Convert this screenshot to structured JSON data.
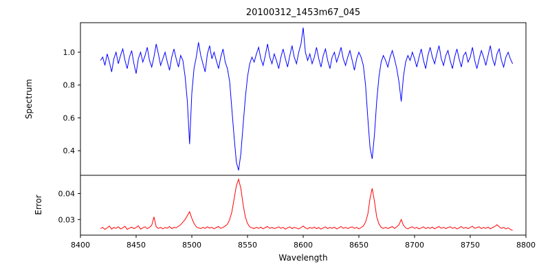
{
  "figure": {
    "title": "20100312_1453m67_045",
    "xlabel": "Wavelength",
    "background": "#ffffff",
    "frame_color": "#000000"
  },
  "chart_data": [
    {
      "type": "line",
      "name": "spectrum",
      "title": "20100312_1453m67_045",
      "ylabel": "Spectrum",
      "color": "#0000ff",
      "legend": "none",
      "grid": false,
      "xlim": [
        8400,
        8800
      ],
      "ylim": [
        0.25,
        1.18
      ],
      "ytick_values": [
        0.4,
        0.6,
        0.8,
        1.0
      ],
      "ytick_labels": [
        "0.4",
        "0.6",
        "0.8",
        "1.0"
      ],
      "x_start": 8418,
      "x_step": 2,
      "values": [
        0.95,
        0.97,
        0.92,
        0.99,
        0.94,
        0.88,
        0.96,
        1.0,
        0.93,
        0.98,
        1.02,
        0.95,
        0.9,
        0.97,
        1.01,
        0.93,
        0.87,
        0.96,
        1.0,
        0.94,
        0.98,
        1.03,
        0.95,
        0.91,
        0.97,
        1.05,
        0.99,
        0.92,
        0.96,
        1.0,
        0.94,
        0.89,
        0.97,
        1.02,
        0.96,
        0.91,
        0.98,
        0.95,
        0.85,
        0.7,
        0.44,
        0.75,
        0.9,
        0.97,
        1.06,
        0.98,
        0.93,
        0.88,
        0.99,
        1.04,
        0.96,
        1.0,
        0.95,
        0.9,
        0.97,
        1.02,
        0.94,
        0.9,
        0.82,
        0.65,
        0.48,
        0.33,
        0.28,
        0.38,
        0.55,
        0.72,
        0.85,
        0.93,
        0.97,
        0.94,
        0.99,
        1.03,
        0.96,
        0.92,
        0.98,
        1.05,
        0.97,
        0.93,
        0.99,
        0.95,
        0.9,
        0.97,
        1.02,
        0.96,
        0.91,
        0.98,
        1.04,
        0.97,
        0.93,
        1.0,
        1.05,
        1.15,
        1.0,
        0.95,
        0.99,
        0.93,
        0.97,
        1.03,
        0.96,
        0.91,
        0.98,
        1.02,
        0.95,
        0.9,
        0.97,
        1.0,
        0.94,
        0.98,
        1.03,
        0.96,
        0.92,
        0.97,
        1.01,
        0.95,
        0.89,
        0.96,
        1.0,
        0.97,
        0.92,
        0.8,
        0.6,
        0.42,
        0.35,
        0.5,
        0.7,
        0.85,
        0.94,
        0.98,
        0.95,
        0.91,
        0.97,
        1.01,
        0.96,
        0.9,
        0.82,
        0.7,
        0.85,
        0.94,
        0.98,
        0.95,
        1.0,
        0.96,
        0.91,
        0.97,
        1.02,
        0.95,
        0.9,
        0.98,
        1.03,
        0.97,
        0.93,
        0.99,
        1.04,
        0.96,
        0.92,
        0.98,
        1.01,
        0.95,
        0.9,
        0.97,
        1.02,
        0.96,
        0.91,
        0.98,
        1.0,
        0.94,
        0.97,
        1.03,
        0.95,
        0.9,
        0.96,
        1.01,
        0.97,
        0.92,
        0.98,
        1.04,
        0.96,
        0.92,
        0.99,
        1.02,
        0.95,
        0.91,
        0.97,
        1.0,
        0.96,
        0.93
      ],
      "features": [
        "absorption line ~8498 depth 0.44",
        "absorption line ~8542 depth 0.28",
        "absorption line ~8662 depth 0.35",
        "small dip ~8688 depth 0.70",
        "emission spike ~8600 height 1.15"
      ]
    },
    {
      "type": "line",
      "name": "error",
      "ylabel": "Error",
      "xlabel": "Wavelength",
      "color": "#ff0000",
      "legend": "none",
      "grid": false,
      "xlim": [
        8400,
        8800
      ],
      "ylim": [
        0.024,
        0.047
      ],
      "ytick_values": [
        0.03,
        0.04
      ],
      "ytick_labels": [
        "0.03",
        "0.04"
      ],
      "xtick_values": [
        8400,
        8450,
        8500,
        8550,
        8600,
        8650,
        8700,
        8750,
        8800
      ],
      "xtick_labels": [
        "8400",
        "8450",
        "8500",
        "8550",
        "8600",
        "8650",
        "8700",
        "8750",
        "8800"
      ],
      "x_start": 8418,
      "x_step": 2,
      "values": [
        0.0265,
        0.027,
        0.0262,
        0.0268,
        0.0275,
        0.0263,
        0.027,
        0.0266,
        0.0272,
        0.0264,
        0.0268,
        0.0274,
        0.0262,
        0.0267,
        0.0271,
        0.0265,
        0.0269,
        0.0276,
        0.0263,
        0.0268,
        0.0272,
        0.0265,
        0.027,
        0.0278,
        0.031,
        0.0272,
        0.0266,
        0.027,
        0.0264,
        0.0269,
        0.0267,
        0.0273,
        0.0265,
        0.027,
        0.0268,
        0.0274,
        0.028,
        0.029,
        0.03,
        0.0315,
        0.033,
        0.0305,
        0.0285,
        0.0272,
        0.0268,
        0.0265,
        0.027,
        0.0266,
        0.0272,
        0.0267,
        0.027,
        0.0264,
        0.0269,
        0.0273,
        0.0266,
        0.027,
        0.0275,
        0.0282,
        0.03,
        0.033,
        0.038,
        0.043,
        0.0455,
        0.042,
        0.036,
        0.031,
        0.0285,
        0.0272,
        0.0268,
        0.0265,
        0.027,
        0.0266,
        0.0271,
        0.0264,
        0.0269,
        0.0273,
        0.0266,
        0.027,
        0.0265,
        0.0268,
        0.0272,
        0.0266,
        0.027,
        0.0263,
        0.0268,
        0.0272,
        0.0265,
        0.027,
        0.0267,
        0.0264,
        0.0269,
        0.0275,
        0.0268,
        0.0264,
        0.027,
        0.0266,
        0.0271,
        0.0265,
        0.0269,
        0.0263,
        0.0268,
        0.0272,
        0.0265,
        0.027,
        0.0266,
        0.0271,
        0.0264,
        0.0268,
        0.0273,
        0.0266,
        0.027,
        0.0265,
        0.0269,
        0.0272,
        0.0266,
        0.027,
        0.0264,
        0.0269,
        0.0275,
        0.029,
        0.032,
        0.038,
        0.042,
        0.037,
        0.031,
        0.0283,
        0.027,
        0.0266,
        0.027,
        0.0265,
        0.0269,
        0.0273,
        0.0266,
        0.0272,
        0.028,
        0.03,
        0.0278,
        0.0268,
        0.0264,
        0.0269,
        0.0272,
        0.0266,
        0.027,
        0.0264,
        0.0268,
        0.0272,
        0.0265,
        0.027,
        0.0266,
        0.0271,
        0.0264,
        0.0269,
        0.0273,
        0.0266,
        0.027,
        0.0265,
        0.0269,
        0.0272,
        0.0266,
        0.027,
        0.0264,
        0.0268,
        0.0273,
        0.0266,
        0.027,
        0.0265,
        0.027,
        0.0274,
        0.0266,
        0.0269,
        0.0272,
        0.0265,
        0.027,
        0.0266,
        0.0271,
        0.0264,
        0.0269,
        0.0273,
        0.028,
        0.0272,
        0.0266,
        0.027,
        0.0264,
        0.0268,
        0.0262,
        0.0258
      ],
      "features": [
        "error peak ~8466 value 0.031",
        "error peak ~8498 value 0.033",
        "error peak ~8542 value 0.0455",
        "error peak ~8662 value 0.042",
        "error bump ~8688 value 0.030"
      ]
    }
  ]
}
